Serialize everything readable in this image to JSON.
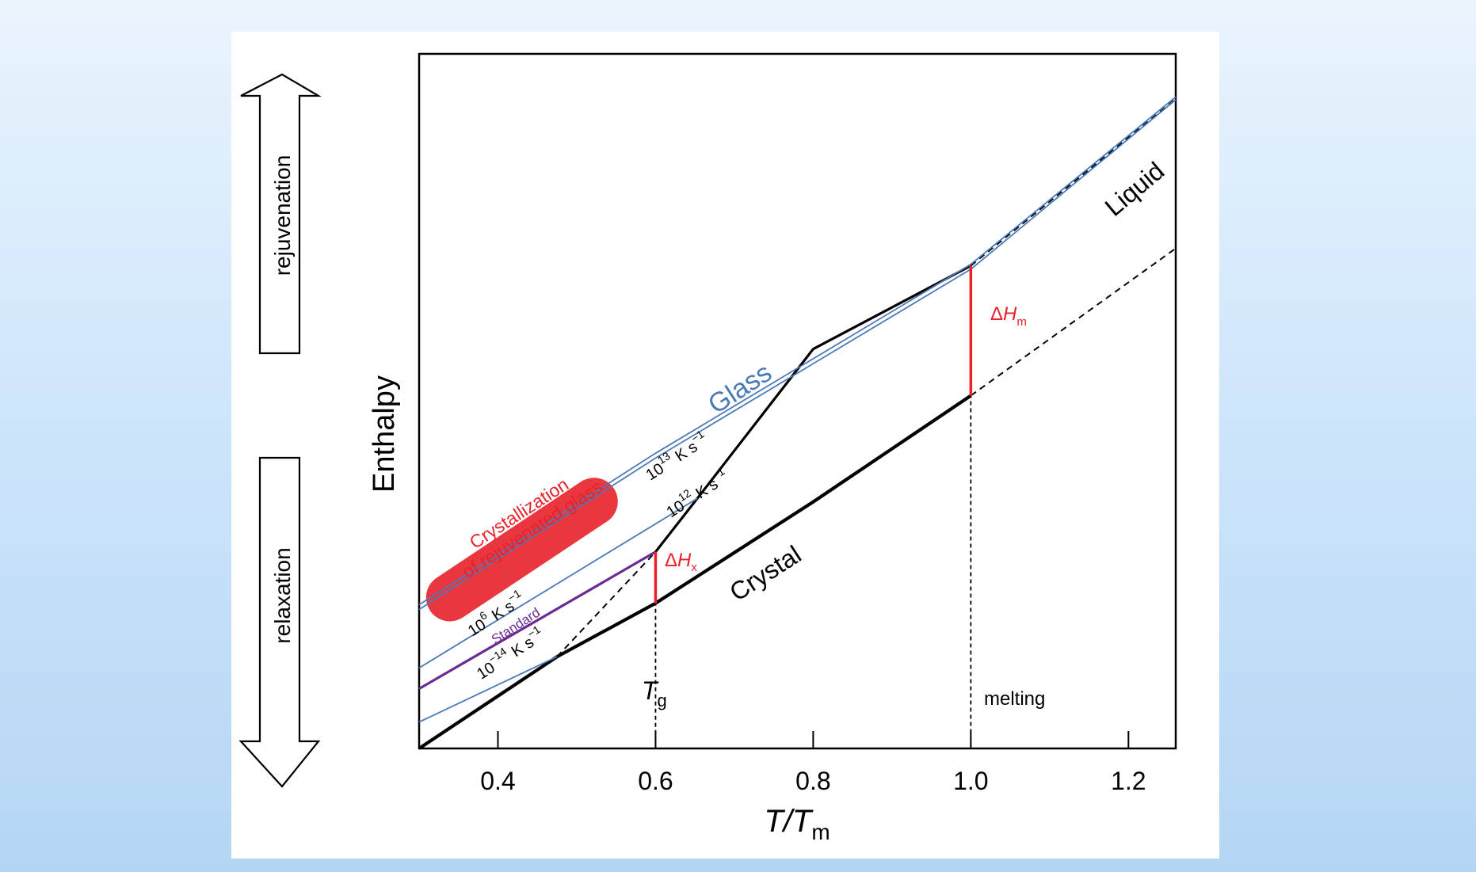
{
  "chart_data": {
    "type": "line",
    "xlabel": "T/T",
    "xlabel_sub": "m",
    "ylabel": "Enthalpy",
    "xlim": [
      0.3,
      1.26
    ],
    "ylim": [
      0,
      1
    ],
    "x_ticks": [
      "0.4",
      "0.6",
      "0.8",
      "1.0",
      "1.2"
    ],
    "x_tick_values": [
      0.4,
      0.6,
      0.8,
      1.0,
      1.2
    ],
    "y_ticks_shown": false,
    "grid": false,
    "series": [
      {
        "name": "Liquid",
        "color": "#000000",
        "points": [
          [
            0.6,
            0.283
          ],
          [
            0.653,
            0.36
          ],
          [
            0.8,
            0.575
          ],
          [
            1.0,
            0.695
          ]
        ]
      },
      {
        "name": "Crystal",
        "color": "#000000",
        "points": [
          [
            0.3,
            0.0
          ],
          [
            0.475,
            0.132
          ],
          [
            0.6,
            0.209
          ],
          [
            0.8,
            0.355
          ],
          [
            1.0,
            0.508
          ]
        ]
      },
      {
        "name": "Glass",
        "color": "#4a7ab8",
        "points": [
          [
            0.3,
            0.207
          ],
          [
            0.6,
            0.425
          ],
          [
            1.0,
            0.697
          ],
          [
            1.26,
            0.938
          ]
        ]
      },
      {
        "name": "",
        "color": "#4a7ab8",
        "points": [
          [
            0.3,
            0.2
          ],
          [
            0.6,
            0.418
          ],
          [
            1.0,
            0.69
          ],
          [
            1.26,
            0.934
          ]
        ]
      },
      {
        "name": "",
        "color": "#4a7ab8",
        "points": [
          [
            0.3,
            0.116
          ],
          [
            0.653,
            0.36
          ]
        ]
      },
      {
        "name": "Standard",
        "color": "#6a2c91",
        "points": [
          [
            0.3,
            0.086
          ],
          [
            0.6,
            0.283
          ]
        ]
      },
      {
        "name": "",
        "color": "#4a7ab8",
        "points": [
          [
            0.3,
            0.038
          ],
          [
            0.475,
            0.132
          ]
        ]
      }
    ],
    "extrapolations": [
      {
        "of": "Liquid",
        "points": [
          [
            1.0,
            0.695
          ],
          [
            1.26,
            0.935
          ]
        ]
      },
      {
        "of": "Crystal",
        "points": [
          [
            1.0,
            0.508
          ],
          [
            1.26,
            0.72
          ]
        ]
      },
      {
        "of": "Liquid",
        "points": [
          [
            0.475,
            0.132
          ],
          [
            0.6,
            0.283
          ]
        ]
      }
    ],
    "markers": [
      {
        "name": "Tg",
        "x": 0.6
      },
      {
        "name": "melting",
        "x": 1.0
      }
    ],
    "enthalpy_gaps": [
      {
        "name": "dHx",
        "x": 0.6,
        "y": [
          0.209,
          0.283
        ]
      },
      {
        "name": "dHm",
        "x": 1.0,
        "y": [
          0.508,
          0.695
        ]
      }
    ],
    "highlight_region": {
      "x": [
        0.335,
        0.53
      ],
      "y": [
        0.215,
        0.36
      ]
    }
  },
  "labels": {
    "liquid": "Liquid",
    "crystal": "Crystal",
    "glass": "Glass",
    "rate_13": {
      "mant": "10",
      "exp": "13",
      "unit": "K s",
      "uexp": "−1"
    },
    "rate_12": {
      "mant": "10",
      "exp": "12",
      "unit": "K s",
      "uexp": "−1"
    },
    "rate_6": {
      "mant": "10",
      "exp": "6",
      "unit": "K s",
      "uexp": "−1"
    },
    "rate_m14": {
      "mant": "10",
      "exp": "−14",
      "unit": "K s",
      "uexp": "−1"
    },
    "standard": "Standard",
    "crystallization_line1": "Crystallization",
    "crystallization_line2": "of rejuvenated glass",
    "dhx": {
      "delta": "Δ",
      "sym": "H",
      "sub": "x"
    },
    "dhm": {
      "delta": "Δ",
      "sym": "H",
      "sub": "m"
    },
    "tg": {
      "sym": "T",
      "sub": "g"
    },
    "melting": "melting",
    "rejuvenation": "rejuvenation",
    "relaxation": "relaxation"
  },
  "colors": {
    "glass_blue": "#4a7ab8",
    "standard_purple": "#6a2c91",
    "highlight_red": "#e8212a",
    "axis": "#000000"
  }
}
